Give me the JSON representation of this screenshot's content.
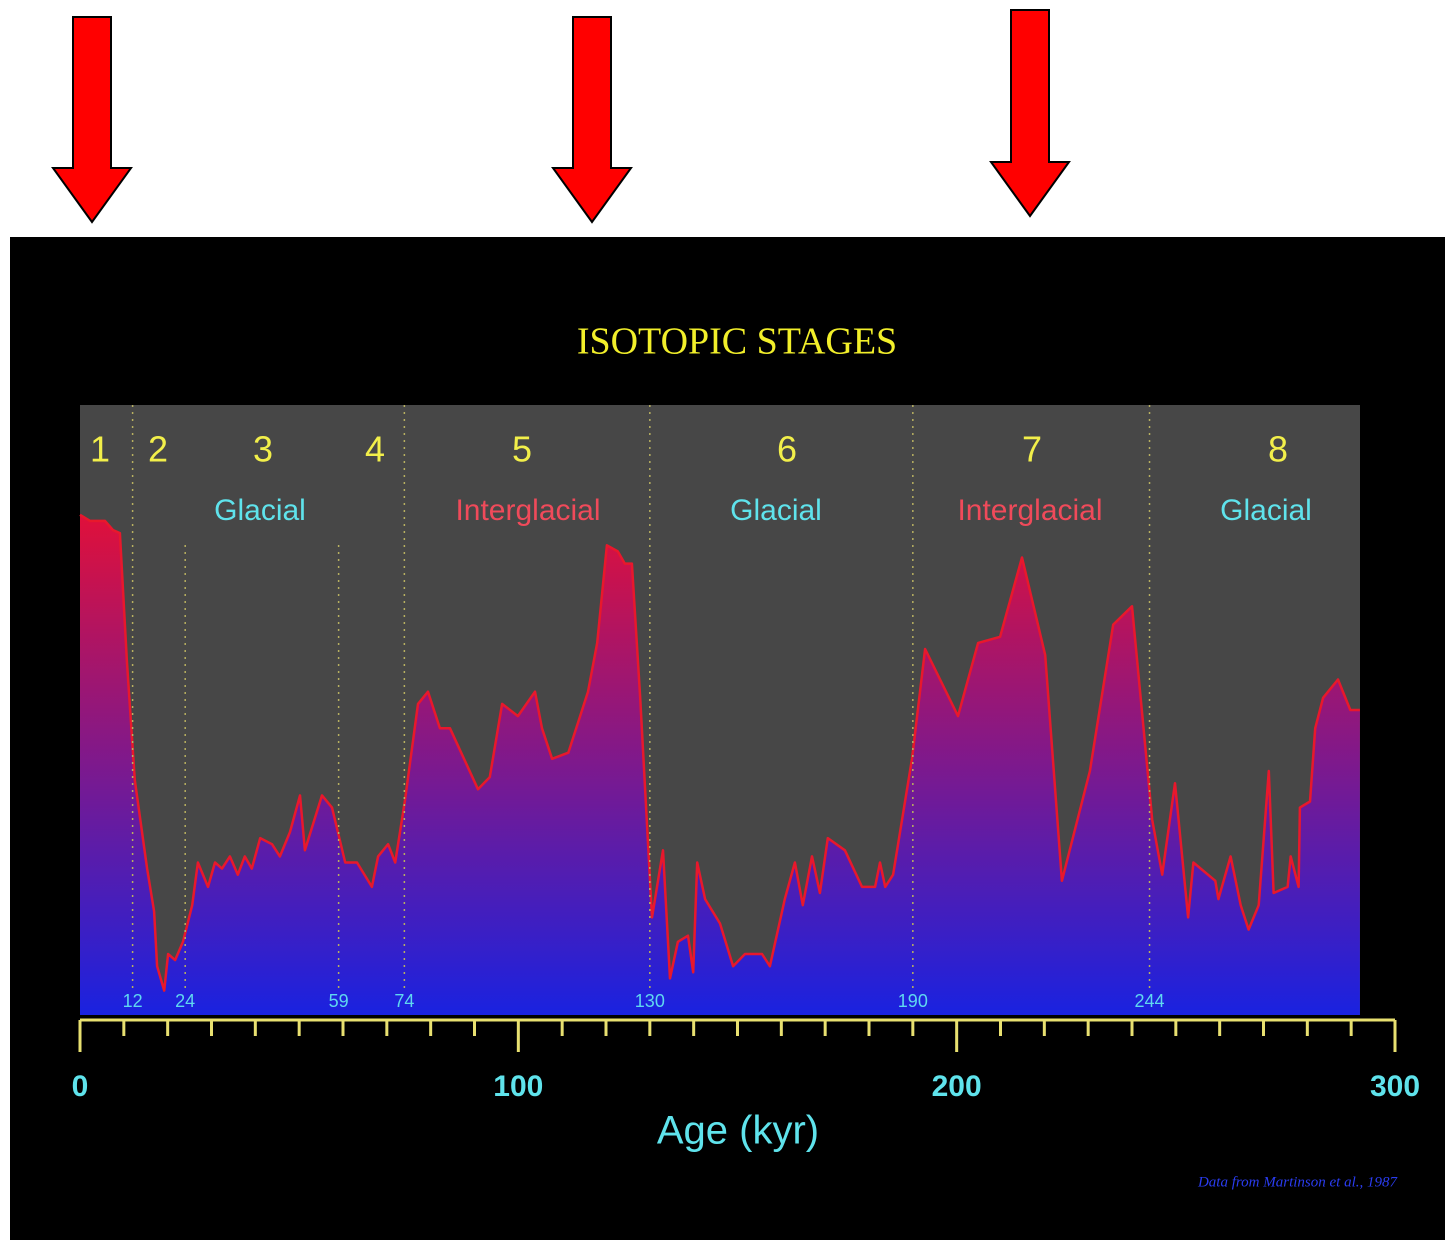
{
  "chart_data": {
    "type": "area",
    "title": "ISOTOPIC STAGES",
    "x_label": "Age (kyr)",
    "credit": "Data from Martinson et al., 1987",
    "xlim": [
      0,
      300
    ],
    "xticks": [
      0,
      100,
      200,
      300
    ],
    "xminor_ticks": [
      10,
      20,
      30,
      40,
      50,
      60,
      70,
      80,
      90,
      110,
      120,
      130,
      140,
      150,
      160,
      170,
      180,
      190,
      210,
      220,
      230,
      240,
      250,
      260,
      270,
      280,
      290
    ],
    "ylim": [
      0,
      100
    ],
    "line_color": "#e8182c",
    "fill_top": "#e0103a",
    "fill_bottom": "#1a22e0",
    "stage_boundaries": [
      12,
      74,
      130,
      190,
      244
    ],
    "substage_boundaries": [
      24,
      59
    ],
    "stages": [
      "1",
      "2",
      "3",
      "4",
      "5",
      "6",
      "7",
      "8"
    ],
    "periods": [
      {
        "label": "Glacial",
        "kind": "glacial"
      },
      {
        "label": "Interglacial",
        "kind": "interglacial"
      },
      {
        "label": "Glacial",
        "kind": "glacial"
      },
      {
        "label": "Interglacial",
        "kind": "interglacial"
      },
      {
        "label": "Glacial",
        "kind": "glacial"
      }
    ],
    "x": [
      0,
      2.3,
      5.7,
      7.5,
      9.1,
      10.7,
      12.5,
      15.3,
      16.9,
      17.6,
      19.2,
      20.1,
      21.7,
      23.5,
      25.6,
      26.9,
      29.2,
      30.8,
      32.4,
      34.2,
      36.0,
      37.6,
      39.2,
      41.1,
      43.8,
      45.6,
      47.9,
      50.2,
      51.3,
      55.2,
      57.5,
      60.5,
      63.2,
      66.6,
      68.0,
      70.3,
      71.9,
      74.1,
      77.1,
      79.4,
      82.1,
      84.4,
      90.8,
      93.5,
      96.3,
      99.9,
      103.8,
      105.4,
      107.7,
      111.4,
      115.9,
      118.0,
      120.2,
      122.7,
      124.3,
      125.9,
      127.8,
      130.5,
      133.0,
      134.6,
      136.4,
      138.7,
      139.9,
      140.8,
      142.6,
      146.0,
      149.0,
      151.7,
      155.6,
      157.4,
      160.8,
      163.1,
      164.9,
      167.0,
      168.8,
      170.6,
      174.5,
      178.4,
      181.4,
      182.5,
      183.7,
      185.5,
      189.8,
      192.8,
      200.3,
      204.9,
      209.9,
      214.9,
      220.2,
      224.0,
      230.4,
      235.7,
      240.0,
      244.6,
      246.9,
      249.8,
      252.8,
      254.0,
      259.0,
      259.7,
      262.5,
      264.8,
      266.6,
      268.9,
      271.2,
      272.3,
      275.5,
      276.2,
      278.0,
      278.3,
      280.6,
      281.8,
      283.6,
      287.0,
      289.8,
      292.0
    ],
    "values": [
      82,
      81,
      81,
      79.5,
      79,
      58,
      38.5,
      24,
      17,
      8,
      4,
      10,
      9,
      12,
      18,
      25,
      21,
      25,
      24,
      26,
      23,
      26,
      24,
      29,
      28,
      26,
      30,
      36,
      27,
      36,
      34,
      25,
      25,
      21,
      26,
      28,
      25,
      35,
      51,
      53,
      47,
      47,
      37,
      39,
      51,
      49,
      53,
      47,
      42,
      43,
      53,
      61,
      77,
      76,
      74,
      74,
      52,
      16,
      27,
      6,
      12,
      13,
      7,
      25,
      19,
      15,
      8,
      10,
      10,
      8,
      19,
      25,
      18,
      26,
      20,
      29,
      27,
      21,
      21,
      25,
      21,
      23,
      42,
      60,
      49,
      61,
      62,
      75,
      59,
      22,
      40,
      64,
      67,
      32,
      23,
      38,
      16,
      25,
      22,
      19,
      26,
      18,
      14,
      18,
      40,
      20,
      21,
      26,
      21,
      34,
      35,
      47,
      52,
      55,
      50,
      50
    ]
  }
}
